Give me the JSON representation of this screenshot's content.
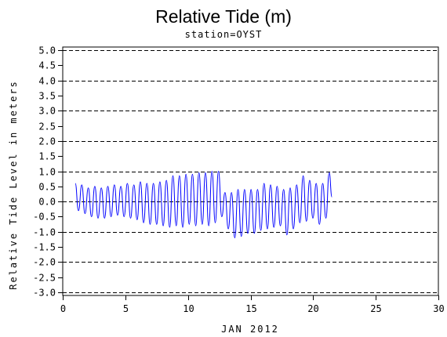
{
  "chart_data": {
    "type": "line",
    "title": "Relative Tide (m)",
    "subtitle": "station=OYST",
    "xlabel": "JAN 2012",
    "ylabel": "Relative Tide Level in meters",
    "xlim": [
      0,
      30
    ],
    "ylim": [
      -3.1,
      5.1
    ],
    "xticks": [
      0,
      5,
      10,
      15,
      20,
      25,
      30
    ],
    "yticks": [
      -3.0,
      -2.5,
      -2.0,
      -1.5,
      -1.0,
      -0.5,
      0.0,
      0.5,
      1.0,
      1.5,
      2.0,
      2.5,
      3.0,
      3.5,
      4.0,
      4.5,
      5.0
    ],
    "ytick_labels": [
      "-3.0",
      "-2.5",
      "-2.0",
      "-1.5",
      "-1.0",
      "-0.5",
      "0.0",
      "0.5",
      "1.0",
      "1.5",
      "2.0",
      "2.5",
      "3.0",
      "3.5",
      "4.0",
      "4.5",
      "5.0"
    ],
    "dashed_gridlines_y": [
      -3,
      -2,
      -1,
      0,
      1,
      2,
      3,
      4,
      5
    ],
    "line_color": "#0000ff",
    "series": [
      {
        "x": [
          1.0,
          1.26,
          1.52,
          1.78,
          2.04,
          2.3,
          2.56,
          2.82,
          3.08,
          3.34,
          3.6,
          3.86,
          4.12,
          4.38,
          4.64,
          4.9,
          5.16,
          5.42,
          5.68,
          5.94,
          6.2,
          6.46,
          6.72,
          6.98,
          7.24,
          7.5,
          7.76,
          8.02,
          8.28,
          8.54,
          8.8,
          9.06,
          9.32,
          9.58,
          9.84,
          10.1,
          10.36,
          10.62,
          10.88,
          11.14,
          11.4,
          11.66,
          11.92,
          12.18,
          12.44,
          12.7,
          12.96,
          13.22,
          13.48,
          13.74,
          14.0,
          14.26,
          14.52,
          14.78,
          15.04,
          15.3,
          15.56,
          15.82,
          16.08,
          16.34,
          16.6,
          16.86,
          17.12,
          17.38,
          17.64,
          17.9,
          18.16,
          18.42,
          18.68,
          18.94,
          19.2,
          19.46,
          19.72,
          19.98,
          20.24,
          20.5,
          20.76,
          21.02,
          21.28,
          21.5
        ],
        "y": [
          0.6,
          -0.3,
          0.55,
          -0.4,
          0.45,
          -0.5,
          0.5,
          -0.55,
          0.45,
          -0.55,
          0.5,
          -0.5,
          0.55,
          -0.45,
          0.5,
          -0.5,
          0.6,
          -0.55,
          0.55,
          -0.6,
          0.65,
          -0.7,
          0.6,
          -0.75,
          0.6,
          -0.75,
          0.65,
          -0.8,
          0.7,
          -0.85,
          0.85,
          -0.8,
          0.85,
          -0.85,
          0.9,
          -0.75,
          0.9,
          -0.8,
          0.95,
          -0.75,
          0.95,
          -0.8,
          1.0,
          -0.7,
          1.0,
          -0.5,
          0.3,
          -0.9,
          0.3,
          -1.2,
          0.4,
          -1.15,
          0.4,
          -1.05,
          0.4,
          -1.05,
          0.4,
          -0.95,
          0.6,
          -0.9,
          0.55,
          -0.85,
          0.5,
          -0.8,
          0.4,
          -1.1,
          0.45,
          -0.9,
          0.55,
          -0.7,
          0.85,
          -0.65,
          0.7,
          -0.55,
          0.6,
          -0.75,
          0.6,
          -0.55,
          0.95,
          0.15
        ]
      }
    ]
  }
}
